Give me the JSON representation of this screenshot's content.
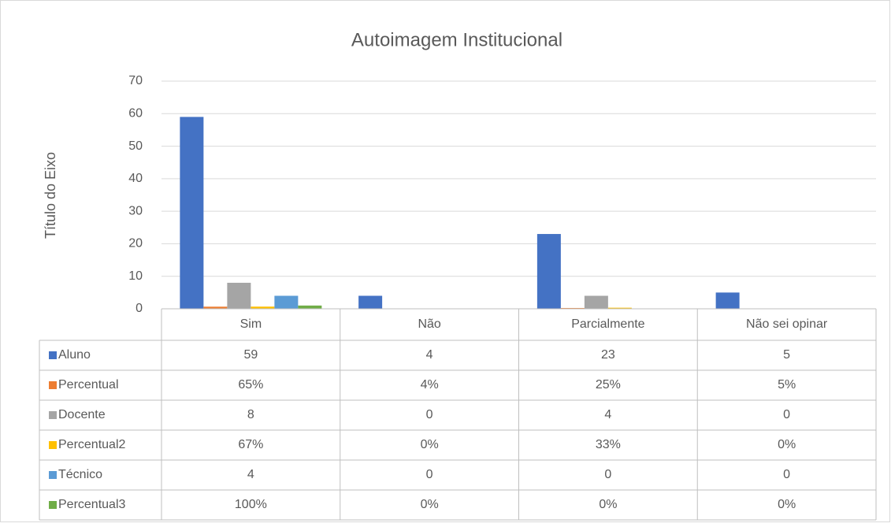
{
  "chart_data": {
    "type": "bar",
    "title": "Autoimagem Institucional",
    "y_label": "Título do Eixo",
    "categories": [
      "Sim",
      "Não",
      "Parcialmente",
      "Não sei opinar"
    ],
    "series": [
      {
        "name": "Aluno",
        "color": "#4472c4",
        "values": [
          59,
          4,
          23,
          5
        ]
      },
      {
        "name": "Percentual",
        "color": "#ed7d31",
        "values": [
          0.65,
          0.04,
          0.25,
          0.05
        ],
        "value_labels": [
          "65%",
          "4%",
          "25%",
          "5%"
        ]
      },
      {
        "name": "Docente",
        "color": "#a5a5a5",
        "values": [
          8,
          0,
          4,
          0
        ]
      },
      {
        "name": "Percentual2",
        "color": "#ffc000",
        "values": [
          0.67,
          0,
          0.33,
          0
        ],
        "value_labels": [
          "67%",
          "0%",
          "33%",
          "0%"
        ]
      },
      {
        "name": "Técnico",
        "color": "#5b9bd5",
        "values": [
          4,
          0,
          0,
          0
        ]
      },
      {
        "name": "Percentual3",
        "color": "#70ad47",
        "values": [
          1,
          0,
          0,
          0
        ],
        "value_labels": [
          "100%",
          "0%",
          "0%",
          "0%"
        ]
      }
    ],
    "ylim": [
      0,
      70
    ],
    "yticks": [
      0,
      10,
      20,
      30,
      40,
      50,
      60,
      70
    ],
    "grid": true,
    "data_table": true
  }
}
